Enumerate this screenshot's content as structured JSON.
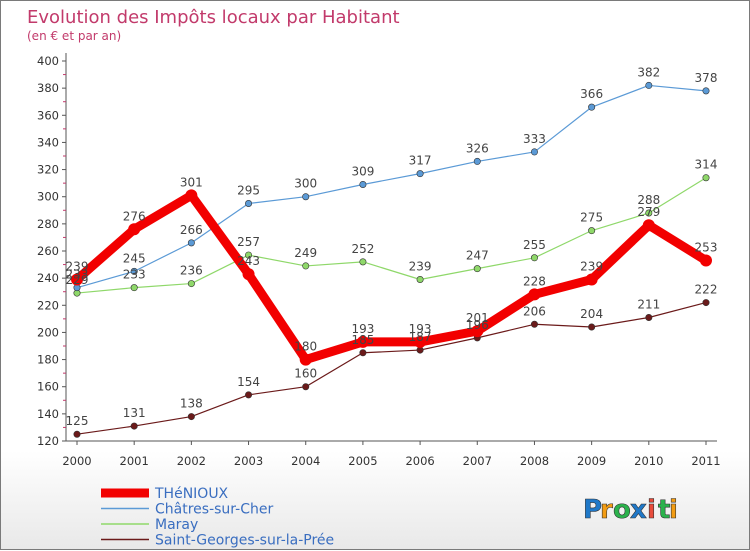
{
  "chart_data": {
    "type": "line",
    "title": "Evolution des Impôts locaux par Habitant",
    "subtitle": "(en € et par an)",
    "x": [
      "2000",
      "2001",
      "2002",
      "2003",
      "2004",
      "2005",
      "2006",
      "2007",
      "2008",
      "2009",
      "2010",
      "2011"
    ],
    "ylim": [
      120,
      400
    ],
    "yticks": [
      120,
      140,
      160,
      180,
      200,
      220,
      240,
      260,
      280,
      300,
      320,
      340,
      360,
      380,
      400
    ],
    "grid": false,
    "legend_position": "bottom-left",
    "series": [
      {
        "name": "Saint-Georges-sur-la-Prée",
        "color": "#6b1a1a",
        "values": [
          125,
          131,
          138,
          154,
          160,
          185,
          187,
          196,
          206,
          204,
          211,
          222
        ],
        "labels": [
          "125",
          "131",
          "138",
          "154",
          "160",
          "185",
          "187",
          "196",
          "206",
          "204",
          "211",
          "222"
        ]
      },
      {
        "name": "Maray",
        "color": "#8fd86a",
        "values": [
          229,
          233,
          236,
          257,
          249,
          252,
          239,
          247,
          255,
          275,
          288,
          314
        ],
        "labels": [
          "229",
          "233",
          "236",
          "257",
          "249",
          "252",
          "239",
          "247",
          "255",
          "275",
          "288",
          "314"
        ]
      },
      {
        "name": "Châtres-sur-Cher",
        "color": "#5b9ad6",
        "values": [
          233,
          245,
          266,
          295,
          300,
          309,
          317,
          326,
          333,
          366,
          382,
          378
        ],
        "labels": [
          "233",
          "245",
          "266",
          "295",
          "300",
          "309",
          "317",
          "326",
          "333",
          "366",
          "382",
          "378"
        ]
      },
      {
        "name": "THéNIOUX",
        "color": "#f20000",
        "values": [
          239,
          276,
          301,
          243,
          180,
          193,
          193,
          201,
          228,
          239,
          279,
          253
        ],
        "labels": [
          "239",
          "276",
          "301",
          "243",
          "180",
          "193",
          "193",
          "201",
          "228",
          "239",
          "279",
          "253"
        ]
      }
    ],
    "legend": [
      "THéNIOUX",
      "Châtres-sur-Cher",
      "Maray",
      "Saint-Georges-sur-la-Prée"
    ]
  },
  "logo": {
    "letters": [
      "P",
      "r",
      "o",
      "x",
      "i",
      "t",
      "i"
    ],
    "colors": [
      "#1f78c8",
      "#f39c12",
      "#2bb24c",
      "#1f78c8",
      "#e74c3c",
      "#2bb24c",
      "#f39c12"
    ]
  }
}
